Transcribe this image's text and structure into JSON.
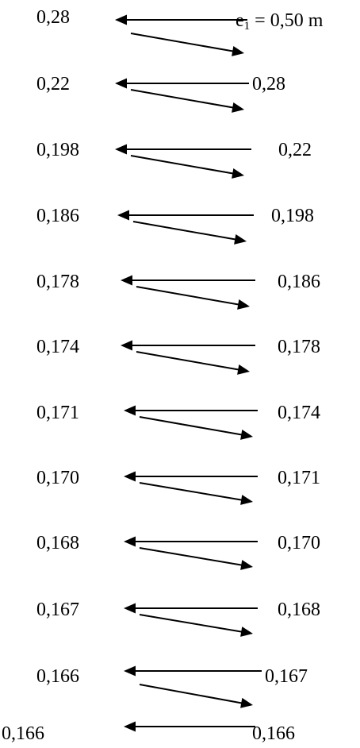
{
  "iterations": [
    {
      "left": "0,28",
      "right_prefix": "e",
      "right_sub": "1",
      "right_suffix": " = 0,50 m"
    },
    {
      "left": "0,22",
      "right": "0,28"
    },
    {
      "left": "0,198",
      "right": "0,22"
    },
    {
      "left": "0,186",
      "right": "0,198"
    },
    {
      "left": "0,178",
      "right": "0,186"
    },
    {
      "left": "0,174",
      "right": "0,178"
    },
    {
      "left": "0,171",
      "right": "0,174"
    },
    {
      "left": "0,170",
      "right": "0,171"
    },
    {
      "left": "0,168",
      "right": "0,170"
    },
    {
      "left": "0,167",
      "right": "0,168"
    },
    {
      "left": "0,166",
      "right": "0,167"
    },
    {
      "left": "0,166",
      "right": "0,166"
    }
  ],
  "colors": {
    "line": "#000000",
    "text": "#000000"
  }
}
